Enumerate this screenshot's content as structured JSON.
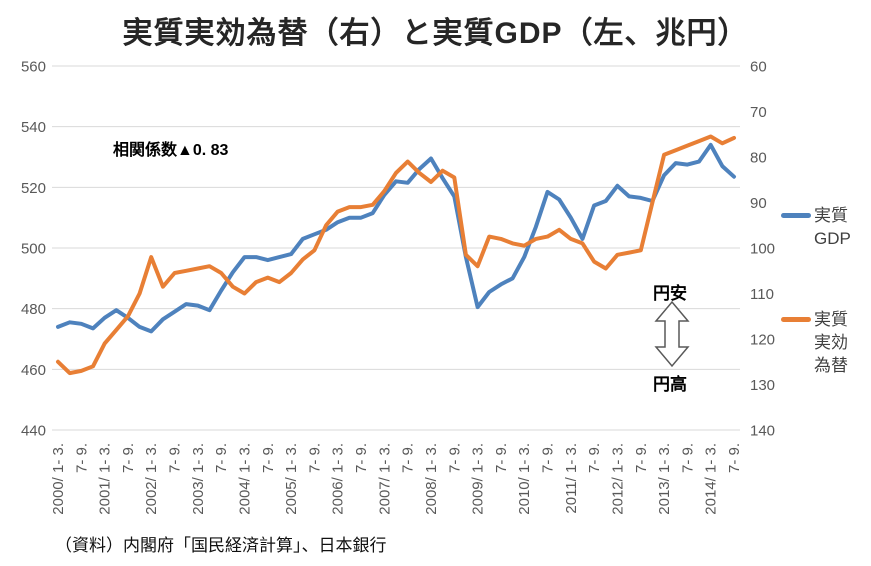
{
  "title": "実質実効為替（右）と実質GDP（左、兆円）",
  "annotations": {
    "correlation": "相関係数▲0. 83",
    "yen_weak": "円安",
    "yen_strong": "円高"
  },
  "source": "（資料）内閣府「国民経済計算」、日本銀行",
  "legend": {
    "gdp": {
      "line1": "実質",
      "line2": "GDP",
      "color": "#4e82bd"
    },
    "fx": {
      "line1": "実質",
      "line2": "実効",
      "line3": "為替",
      "color": "#e87f35"
    }
  },
  "chart_data": {
    "type": "line",
    "title": "実質実効為替（右）と実質GDP（左、兆円）",
    "grid": true,
    "grid_color": "#d9d9d9",
    "axis_label_color": "#595959",
    "left_axis": {
      "label": "実質GDP（兆円）",
      "min": 440,
      "max": 560,
      "step": 20,
      "ticks": [
        560,
        540,
        520,
        500,
        480,
        460,
        440
      ]
    },
    "right_axis": {
      "label": "実質実効為替",
      "min": 60,
      "max": 140,
      "step": 10,
      "inverted": true,
      "ticks": [
        60,
        70,
        80,
        90,
        100,
        110,
        120,
        130,
        140
      ]
    },
    "x_tick_labels": [
      "2000/ 1- 3.",
      "7- 9.",
      "2001/ 1- 3.",
      "7- 9.",
      "2002/ 1- 3.",
      "7- 9.",
      "2003/ 1- 3.",
      "7- 9.",
      "2004/ 1- 3.",
      "7- 9.",
      "2005/ 1- 3.",
      "7- 9.",
      "2006/ 1- 3.",
      "7- 9.",
      "2007/ 1- 3.",
      "7- 9.",
      "2008/ 1- 3.",
      "7- 9.",
      "2009/ 1- 3.",
      "7- 9.",
      "2010/ 1- 3.",
      "7- 9.",
      "2011/ 1- 3.",
      "7- 9.",
      "2012/ 1- 3.",
      "7- 9.",
      "2013/ 1- 3.",
      "7- 9.",
      "2014/ 1- 3.",
      "7- 9."
    ],
    "x_range_note": "quarterly 2000Q1 - 2014Q3, labels every 2nd quarter",
    "series": [
      {
        "name": "実質GDP",
        "axis": "left",
        "color": "#4e82bd",
        "values": [
          474,
          475.5,
          475,
          473.5,
          477,
          479.5,
          477,
          474,
          472.5,
          476.5,
          479,
          481.5,
          481,
          479.5,
          486,
          492,
          497,
          497,
          496,
          497,
          498,
          503,
          504.5,
          506,
          508.5,
          510,
          510,
          511.5,
          517.5,
          522,
          521.5,
          526,
          529.5,
          523,
          517,
          497,
          480.5,
          485.5,
          488,
          490,
          497,
          507,
          518.5,
          516,
          510,
          503,
          514,
          515.5,
          520.5,
          517,
          516.5,
          515.5,
          524,
          528,
          527.5,
          528.5,
          534,
          527,
          523.5
        ]
      },
      {
        "name": "実質実効為替",
        "axis": "right",
        "color": "#e87f35",
        "values": [
          125,
          127.5,
          127,
          126,
          121,
          118,
          115,
          110,
          102,
          108.5,
          105.5,
          105,
          104.5,
          104,
          105.5,
          108.5,
          110,
          107.5,
          106.5,
          107.5,
          105.5,
          102.5,
          100.5,
          95,
          92,
          91,
          91,
          90.5,
          87.5,
          83.5,
          81,
          83.5,
          85.5,
          83,
          84.5,
          101.5,
          104,
          97.5,
          98,
          99,
          99.5,
          98,
          97.5,
          96,
          98,
          99,
          103,
          104.5,
          101.5,
          101,
          100.5,
          90,
          79.5,
          78.5,
          77.5,
          76.5,
          75.5,
          77,
          75.8
        ]
      }
    ]
  }
}
